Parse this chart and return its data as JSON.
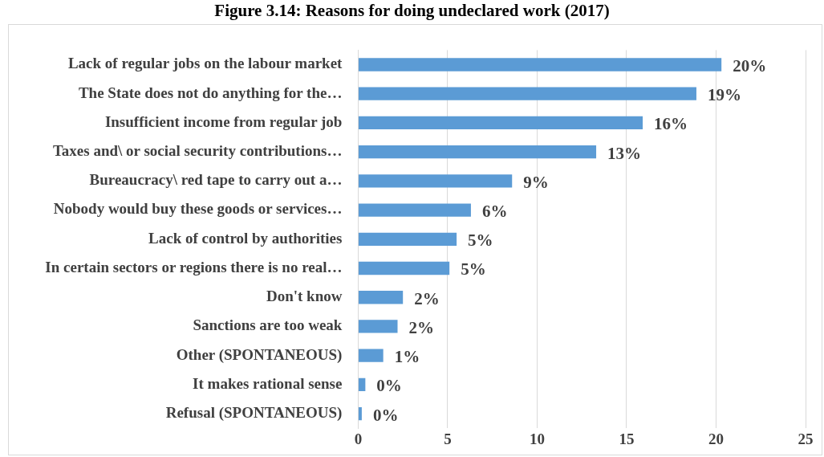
{
  "chart_data": {
    "type": "bar",
    "orientation": "horizontal",
    "title": "Figure 3.14: Reasons for doing undeclared work (2017)",
    "categories": [
      "Lack of regular jobs on the labour market",
      "The State does not do anything for the…",
      "Insufficient income from regular job",
      "Taxes and\\ or social security contributions…",
      "Bureaucracy\\ red tape to carry out a…",
      "Nobody would buy these goods or services…",
      "Lack of control by authorities",
      "In certain sectors or regions there is no real…",
      "Don't know",
      "Sanctions are too weak",
      "Other (SPONTANEOUS)",
      "It makes rational sense",
      "Refusal (SPONTANEOUS)"
    ],
    "values": [
      20.3,
      18.9,
      15.9,
      13.3,
      8.6,
      6.3,
      5.5,
      5.1,
      2.5,
      2.2,
      1.4,
      0.4,
      0.2
    ],
    "value_labels": [
      "20%",
      "19%",
      "16%",
      "13%",
      "9%",
      "6%",
      "5%",
      "5%",
      "2%",
      "2%",
      "1%",
      "0%",
      "0%"
    ],
    "color": "#5b9bd5",
    "xlim": [
      0,
      25
    ],
    "xticks": [
      0,
      5,
      10,
      15,
      20,
      25
    ],
    "grid": "x"
  }
}
